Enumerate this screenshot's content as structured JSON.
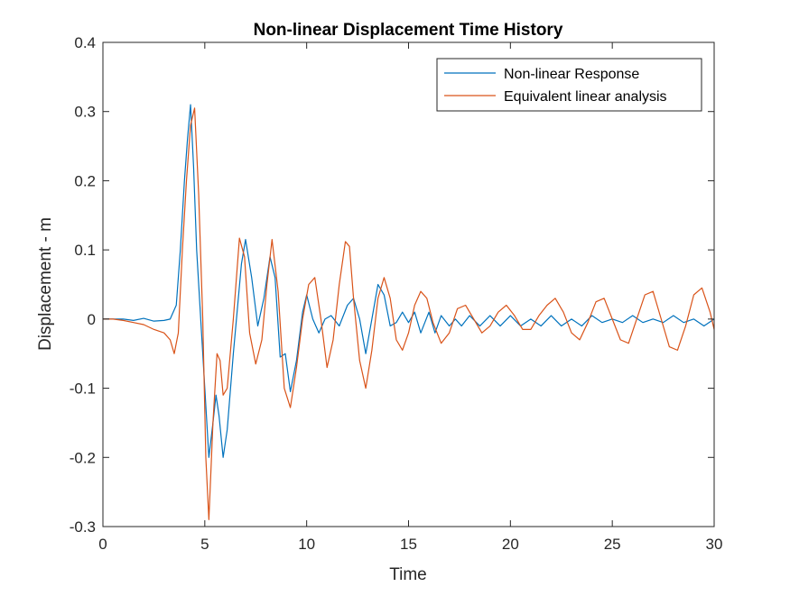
{
  "chart_data": {
    "type": "line",
    "title": "Non-linear Displacement Time History",
    "xlabel": "Time",
    "ylabel": "Displacement - m",
    "xlim": [
      0,
      30
    ],
    "ylim": [
      -0.3,
      0.4
    ],
    "xticks": [
      0,
      5,
      10,
      15,
      20,
      25,
      30
    ],
    "yticks": [
      -0.3,
      -0.2,
      -0.1,
      0,
      0.1,
      0.2,
      0.3,
      0.4
    ],
    "xtick_labels": [
      "0",
      "5",
      "10",
      "15",
      "20",
      "25",
      "30"
    ],
    "ytick_labels": [
      "-0.3",
      "-0.2",
      "-0.1",
      "0",
      "0.1",
      "0.2",
      "0.3",
      "0.4"
    ],
    "grid": false,
    "legend_position": "top-right",
    "series": [
      {
        "name": "Non-linear Response",
        "color": "#0072BD",
        "x": [
          0,
          1,
          1.5,
          2,
          2.5,
          3,
          3.3,
          3.6,
          3.8,
          4.0,
          4.15,
          4.3,
          4.45,
          4.6,
          4.8,
          5.0,
          5.2,
          5.4,
          5.55,
          5.7,
          5.9,
          6.1,
          6.4,
          6.8,
          7.0,
          7.3,
          7.6,
          7.9,
          8.2,
          8.45,
          8.7,
          8.95,
          9.2,
          9.5,
          9.8,
          10.0,
          10.3,
          10.6,
          10.9,
          11.2,
          11.6,
          12.0,
          12.3,
          12.6,
          12.9,
          13.2,
          13.5,
          13.8,
          14.1,
          14.4,
          14.7,
          15.0,
          15.3,
          15.6,
          16.0,
          16.3,
          16.6,
          17.0,
          17.3,
          17.6,
          18.0,
          18.5,
          19.0,
          19.5,
          20.0,
          20.5,
          21.0,
          21.5,
          22.0,
          22.5,
          23.0,
          23.5,
          24.0,
          24.5,
          25.0,
          25.5,
          26.0,
          26.5,
          27.0,
          27.5,
          28.0,
          28.5,
          29.0,
          29.5,
          30.0
        ],
        "y": [
          0,
          0,
          -0.002,
          0.001,
          -0.003,
          -0.002,
          0.0,
          0.02,
          0.1,
          0.2,
          0.26,
          0.31,
          0.22,
          0.1,
          0.0,
          -0.1,
          -0.2,
          -0.15,
          -0.11,
          -0.14,
          -0.2,
          -0.16,
          -0.05,
          0.08,
          0.115,
          0.06,
          -0.01,
          0.03,
          0.09,
          0.06,
          -0.055,
          -0.05,
          -0.105,
          -0.06,
          0.01,
          0.035,
          0.0,
          -0.02,
          0.0,
          0.005,
          -0.01,
          0.02,
          0.03,
          0.0,
          -0.05,
          0.0,
          0.05,
          0.035,
          -0.01,
          -0.005,
          0.01,
          -0.005,
          0.01,
          -0.02,
          0.01,
          -0.02,
          0.005,
          -0.01,
          0.0,
          -0.01,
          0.005,
          -0.01,
          0.005,
          -0.01,
          0.005,
          -0.01,
          0.0,
          -0.01,
          0.005,
          -0.01,
          0.0,
          -0.01,
          0.005,
          -0.005,
          0.0,
          -0.005,
          0.005,
          -0.005,
          0.0,
          -0.005,
          0.005,
          -0.005,
          0.0,
          -0.01,
          0.0
        ]
      },
      {
        "name": "Equivalent linear analysis",
        "color": "#D95319",
        "x": [
          0,
          0.5,
          1.0,
          1.5,
          2.0,
          2.5,
          3.0,
          3.3,
          3.5,
          3.7,
          3.9,
          4.1,
          4.3,
          4.5,
          4.7,
          4.9,
          5.05,
          5.2,
          5.4,
          5.6,
          5.75,
          5.9,
          6.1,
          6.4,
          6.7,
          6.95,
          7.2,
          7.5,
          7.8,
          8.05,
          8.3,
          8.6,
          8.9,
          9.2,
          9.5,
          9.8,
          10.1,
          10.4,
          10.7,
          11.0,
          11.3,
          11.6,
          11.9,
          12.1,
          12.3,
          12.6,
          12.9,
          13.2,
          13.5,
          13.8,
          14.1,
          14.4,
          14.7,
          15.0,
          15.3,
          15.6,
          15.9,
          16.2,
          16.6,
          17.0,
          17.4,
          17.8,
          18.2,
          18.6,
          19.0,
          19.4,
          19.8,
          20.2,
          20.6,
          21.0,
          21.4,
          21.8,
          22.2,
          22.6,
          23.0,
          23.4,
          23.8,
          24.2,
          24.6,
          25.0,
          25.4,
          25.8,
          26.2,
          26.6,
          27.0,
          27.4,
          27.8,
          28.2,
          28.6,
          29.0,
          29.4,
          29.8,
          30.0
        ],
        "y": [
          0,
          0,
          -0.002,
          -0.005,
          -0.008,
          -0.015,
          -0.02,
          -0.03,
          -0.05,
          -0.02,
          0.1,
          0.2,
          0.28,
          0.305,
          0.18,
          0.0,
          -0.2,
          -0.29,
          -0.15,
          -0.05,
          -0.06,
          -0.11,
          -0.1,
          0.0,
          0.117,
          0.09,
          -0.02,
          -0.065,
          -0.03,
          0.05,
          0.115,
          0.04,
          -0.1,
          -0.128,
          -0.07,
          0.0,
          0.05,
          0.06,
          0.0,
          -0.07,
          -0.03,
          0.05,
          0.112,
          0.105,
          0.03,
          -0.06,
          -0.1,
          -0.045,
          0.03,
          0.06,
          0.03,
          -0.03,
          -0.045,
          -0.02,
          0.02,
          0.04,
          0.03,
          -0.005,
          -0.035,
          -0.02,
          0.015,
          0.02,
          0.0,
          -0.02,
          -0.01,
          0.01,
          0.02,
          0.005,
          -0.015,
          -0.015,
          0.005,
          0.02,
          0.03,
          0.01,
          -0.02,
          -0.03,
          -0.005,
          0.025,
          0.03,
          0.0,
          -0.03,
          -0.035,
          0.0,
          0.035,
          0.04,
          0.0,
          -0.04,
          -0.045,
          -0.01,
          0.035,
          0.045,
          0.01,
          -0.015
        ]
      }
    ]
  }
}
